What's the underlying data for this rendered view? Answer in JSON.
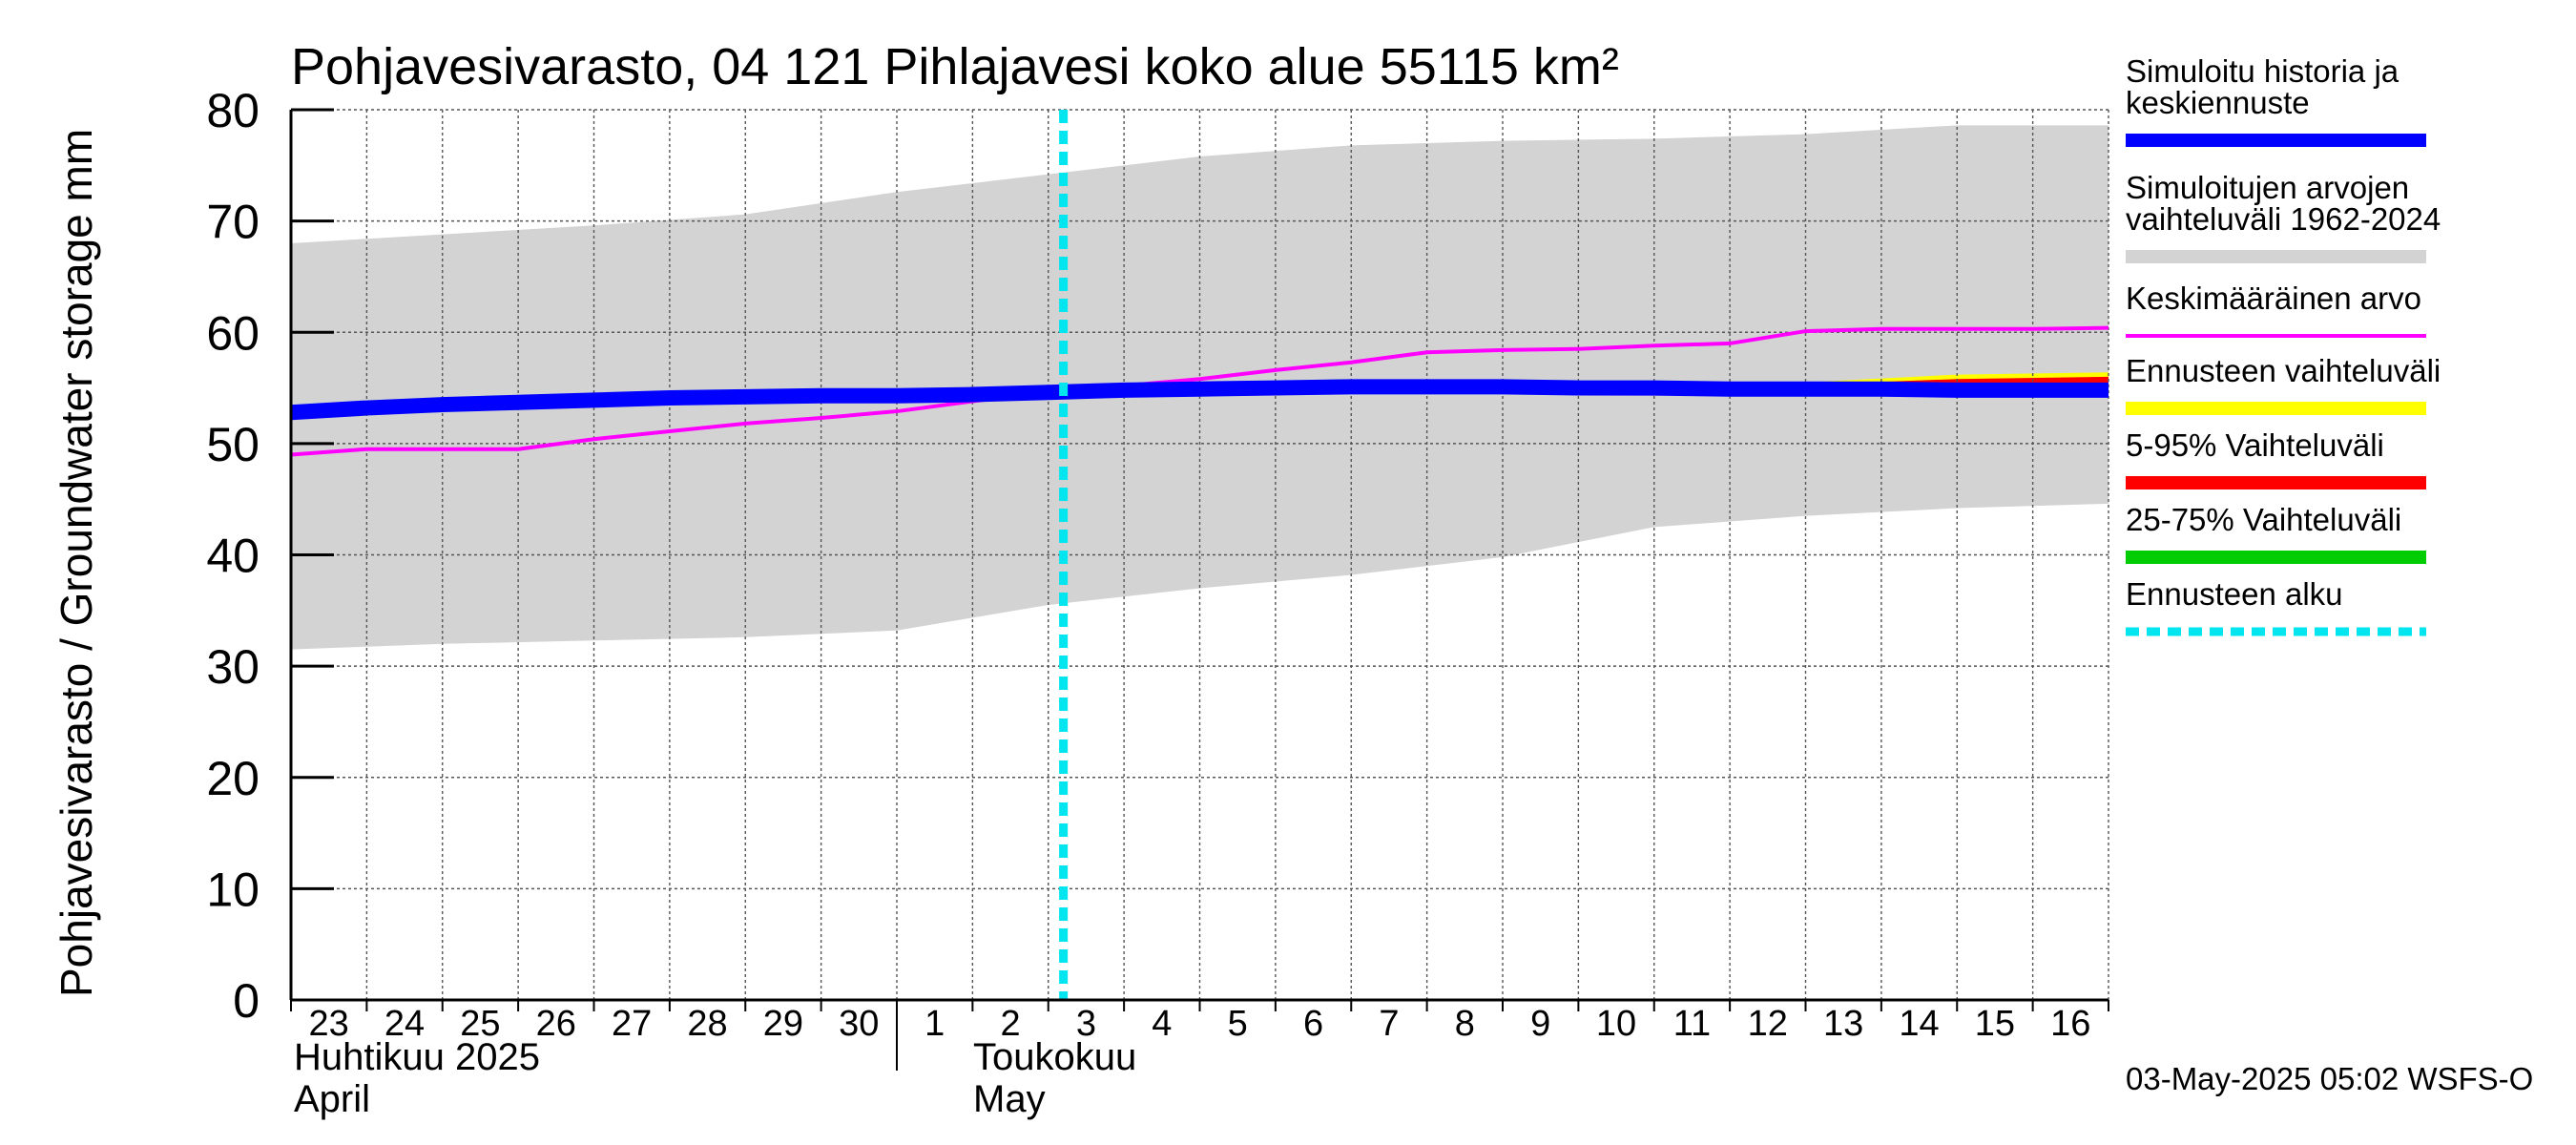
{
  "chart_data": {
    "type": "area",
    "title": "Pohjavesivarasto, 04 121 Pihlajavesi koko alue 55115 km²",
    "ylabel": "Pohjavesivarasto / Groundwater storage   mm",
    "ylim": [
      0,
      80
    ],
    "yticks": [
      "0",
      "10",
      "20",
      "30",
      "40",
      "50",
      "60",
      "70",
      "80"
    ],
    "xlim": [
      0,
      24
    ],
    "day_labels": [
      "23",
      "24",
      "25",
      "26",
      "27",
      "28",
      "29",
      "30",
      "1",
      "2",
      "3",
      "4",
      "5",
      "6",
      "7",
      "8",
      "9",
      "10",
      "11",
      "12",
      "13",
      "14",
      "15",
      "16"
    ],
    "month_labels": [
      {
        "line1": "Huhtikuu  2025",
        "line2": "April"
      },
      {
        "line1": "Toukokuu",
        "line2": "May"
      }
    ],
    "month_boundary_x": 8,
    "forecast_start_x": 10.2,
    "series": [
      {
        "name": "Simuloitujen arvojen vaihteluväli 1962-2024",
        "kind": "band",
        "color": "#d3d3d3",
        "x": [
          0,
          2,
          4,
          6,
          8,
          10,
          12,
          14,
          16,
          18,
          20,
          22,
          24
        ],
        "upper": [
          68.0,
          68.8,
          69.6,
          70.6,
          72.6,
          74.2,
          75.8,
          76.8,
          77.2,
          77.4,
          77.8,
          78.6,
          78.6
        ],
        "lower": [
          31.5,
          32.0,
          32.3,
          32.6,
          33.2,
          35.5,
          37.0,
          38.2,
          39.8,
          42.5,
          43.5,
          44.2,
          44.6
        ]
      },
      {
        "name": "Ennusteen vaihteluväli",
        "kind": "band",
        "color": "#ffff00",
        "x": [
          10.2,
          14,
          18,
          20,
          22,
          24
        ],
        "upper": [
          55.0,
          55.4,
          55.3,
          55.5,
          56.2,
          56.4
        ],
        "lower": [
          54.8,
          55.0,
          54.9,
          54.7,
          54.3,
          54.2
        ]
      },
      {
        "name": "5-95% Vaihteluväli",
        "kind": "band",
        "color": "#ff0000",
        "x": [
          10.2,
          14,
          18,
          20,
          22,
          24
        ],
        "upper": [
          55.0,
          55.3,
          55.2,
          55.3,
          55.8,
          56.0
        ],
        "lower": [
          54.8,
          55.0,
          54.9,
          54.8,
          54.5,
          54.4
        ]
      },
      {
        "name": "25-75% Vaihteluväli",
        "kind": "band",
        "color": "#00cc00",
        "x": [
          10.2,
          14,
          18,
          20,
          22,
          24
        ],
        "upper": [
          55.0,
          55.2,
          55.1,
          55.1,
          55.2,
          55.3
        ],
        "lower": [
          54.9,
          55.0,
          54.9,
          54.9,
          54.8,
          54.8
        ]
      },
      {
        "name": "Keskimääräinen arvo",
        "kind": "line",
        "color": "#ff00ff",
        "x": [
          0,
          1,
          2,
          3,
          4,
          5,
          6,
          7,
          8,
          9,
          10,
          11,
          12,
          13,
          14,
          15,
          16,
          17,
          18,
          19,
          20,
          21,
          22,
          23,
          24
        ],
        "y": [
          49.0,
          49.5,
          49.5,
          49.5,
          50.4,
          51.1,
          51.8,
          52.3,
          52.9,
          53.8,
          54.6,
          55.2,
          55.8,
          56.6,
          57.3,
          58.2,
          58.4,
          58.5,
          58.8,
          59.0,
          60.1,
          60.3,
          60.3,
          60.3,
          60.4
        ]
      },
      {
        "name": "Simuloitu historia ja keskiennuste",
        "kind": "line",
        "color": "#0000ff",
        "x": [
          0,
          1,
          2,
          3,
          4,
          5,
          6,
          7,
          8,
          9,
          10,
          11,
          12,
          13,
          14,
          15,
          16,
          17,
          18,
          19,
          20,
          21,
          22,
          23,
          24
        ],
        "y": [
          52.8,
          53.2,
          53.5,
          53.7,
          53.9,
          54.1,
          54.2,
          54.3,
          54.3,
          54.4,
          54.6,
          54.8,
          54.9,
          55.0,
          55.1,
          55.1,
          55.1,
          55.0,
          55.0,
          54.9,
          54.9,
          54.9,
          54.8,
          54.8,
          54.8
        ]
      }
    ],
    "legend": [
      {
        "label_lines": [
          "Simuloitu historia ja",
          "keskiennuste"
        ],
        "color": "#0000ff",
        "style": "thick"
      },
      {
        "label_lines": [
          "Simuloitujen arvojen",
          "vaihteluväli 1962-2024"
        ],
        "color": "#d3d3d3",
        "style": "thick"
      },
      {
        "label_lines": [
          "Keskimääräinen arvo"
        ],
        "color": "#ff00ff",
        "style": "thin"
      },
      {
        "label_lines": [
          "Ennusteen vaihteluväli"
        ],
        "color": "#ffff00",
        "style": "thick"
      },
      {
        "label_lines": [
          "5-95% Vaihteluväli"
        ],
        "color": "#ff0000",
        "style": "thick"
      },
      {
        "label_lines": [
          "25-75% Vaihteluväli"
        ],
        "color": "#00cc00",
        "style": "thick"
      },
      {
        "label_lines": [
          "Ennusteen alku"
        ],
        "color": "#00e5ee",
        "style": "dashed"
      }
    ],
    "timestamp": "03-May-2025 05:02 WSFS-O"
  }
}
